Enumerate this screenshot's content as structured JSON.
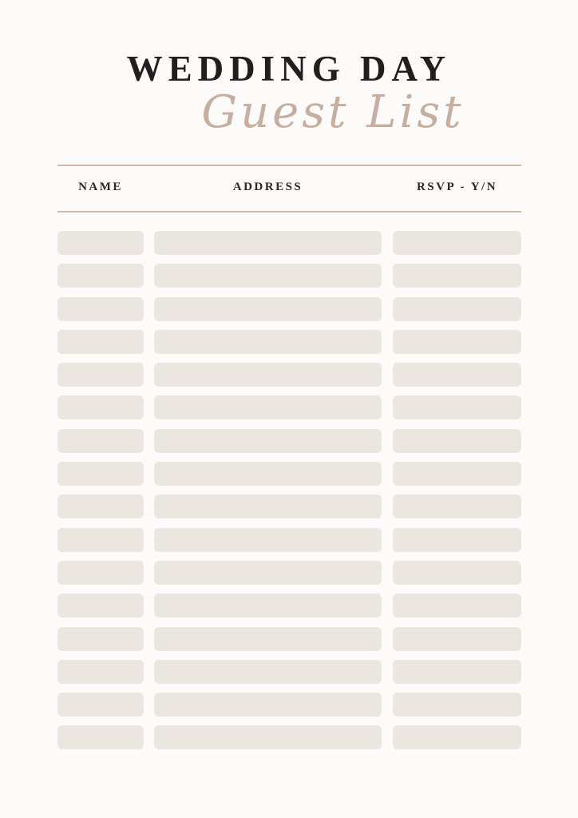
{
  "document": {
    "title": "WEDDING DAY",
    "subtitle": "Guest List"
  },
  "table": {
    "columns": [
      {
        "id": "name",
        "label": "NAME"
      },
      {
        "id": "address",
        "label": "ADDRESS"
      },
      {
        "id": "rsvp",
        "label": "RSVP - Y/N"
      }
    ],
    "row_count": 16,
    "cell_value_placeholder": ""
  },
  "colors": {
    "page_background": "#fcfbfa",
    "field_fill": "#ece6e0",
    "divider": "#ccbaa8",
    "title_text": "#211f1e",
    "subtitle_text": "#c6afa0",
    "header_text": "#2b2927"
  }
}
